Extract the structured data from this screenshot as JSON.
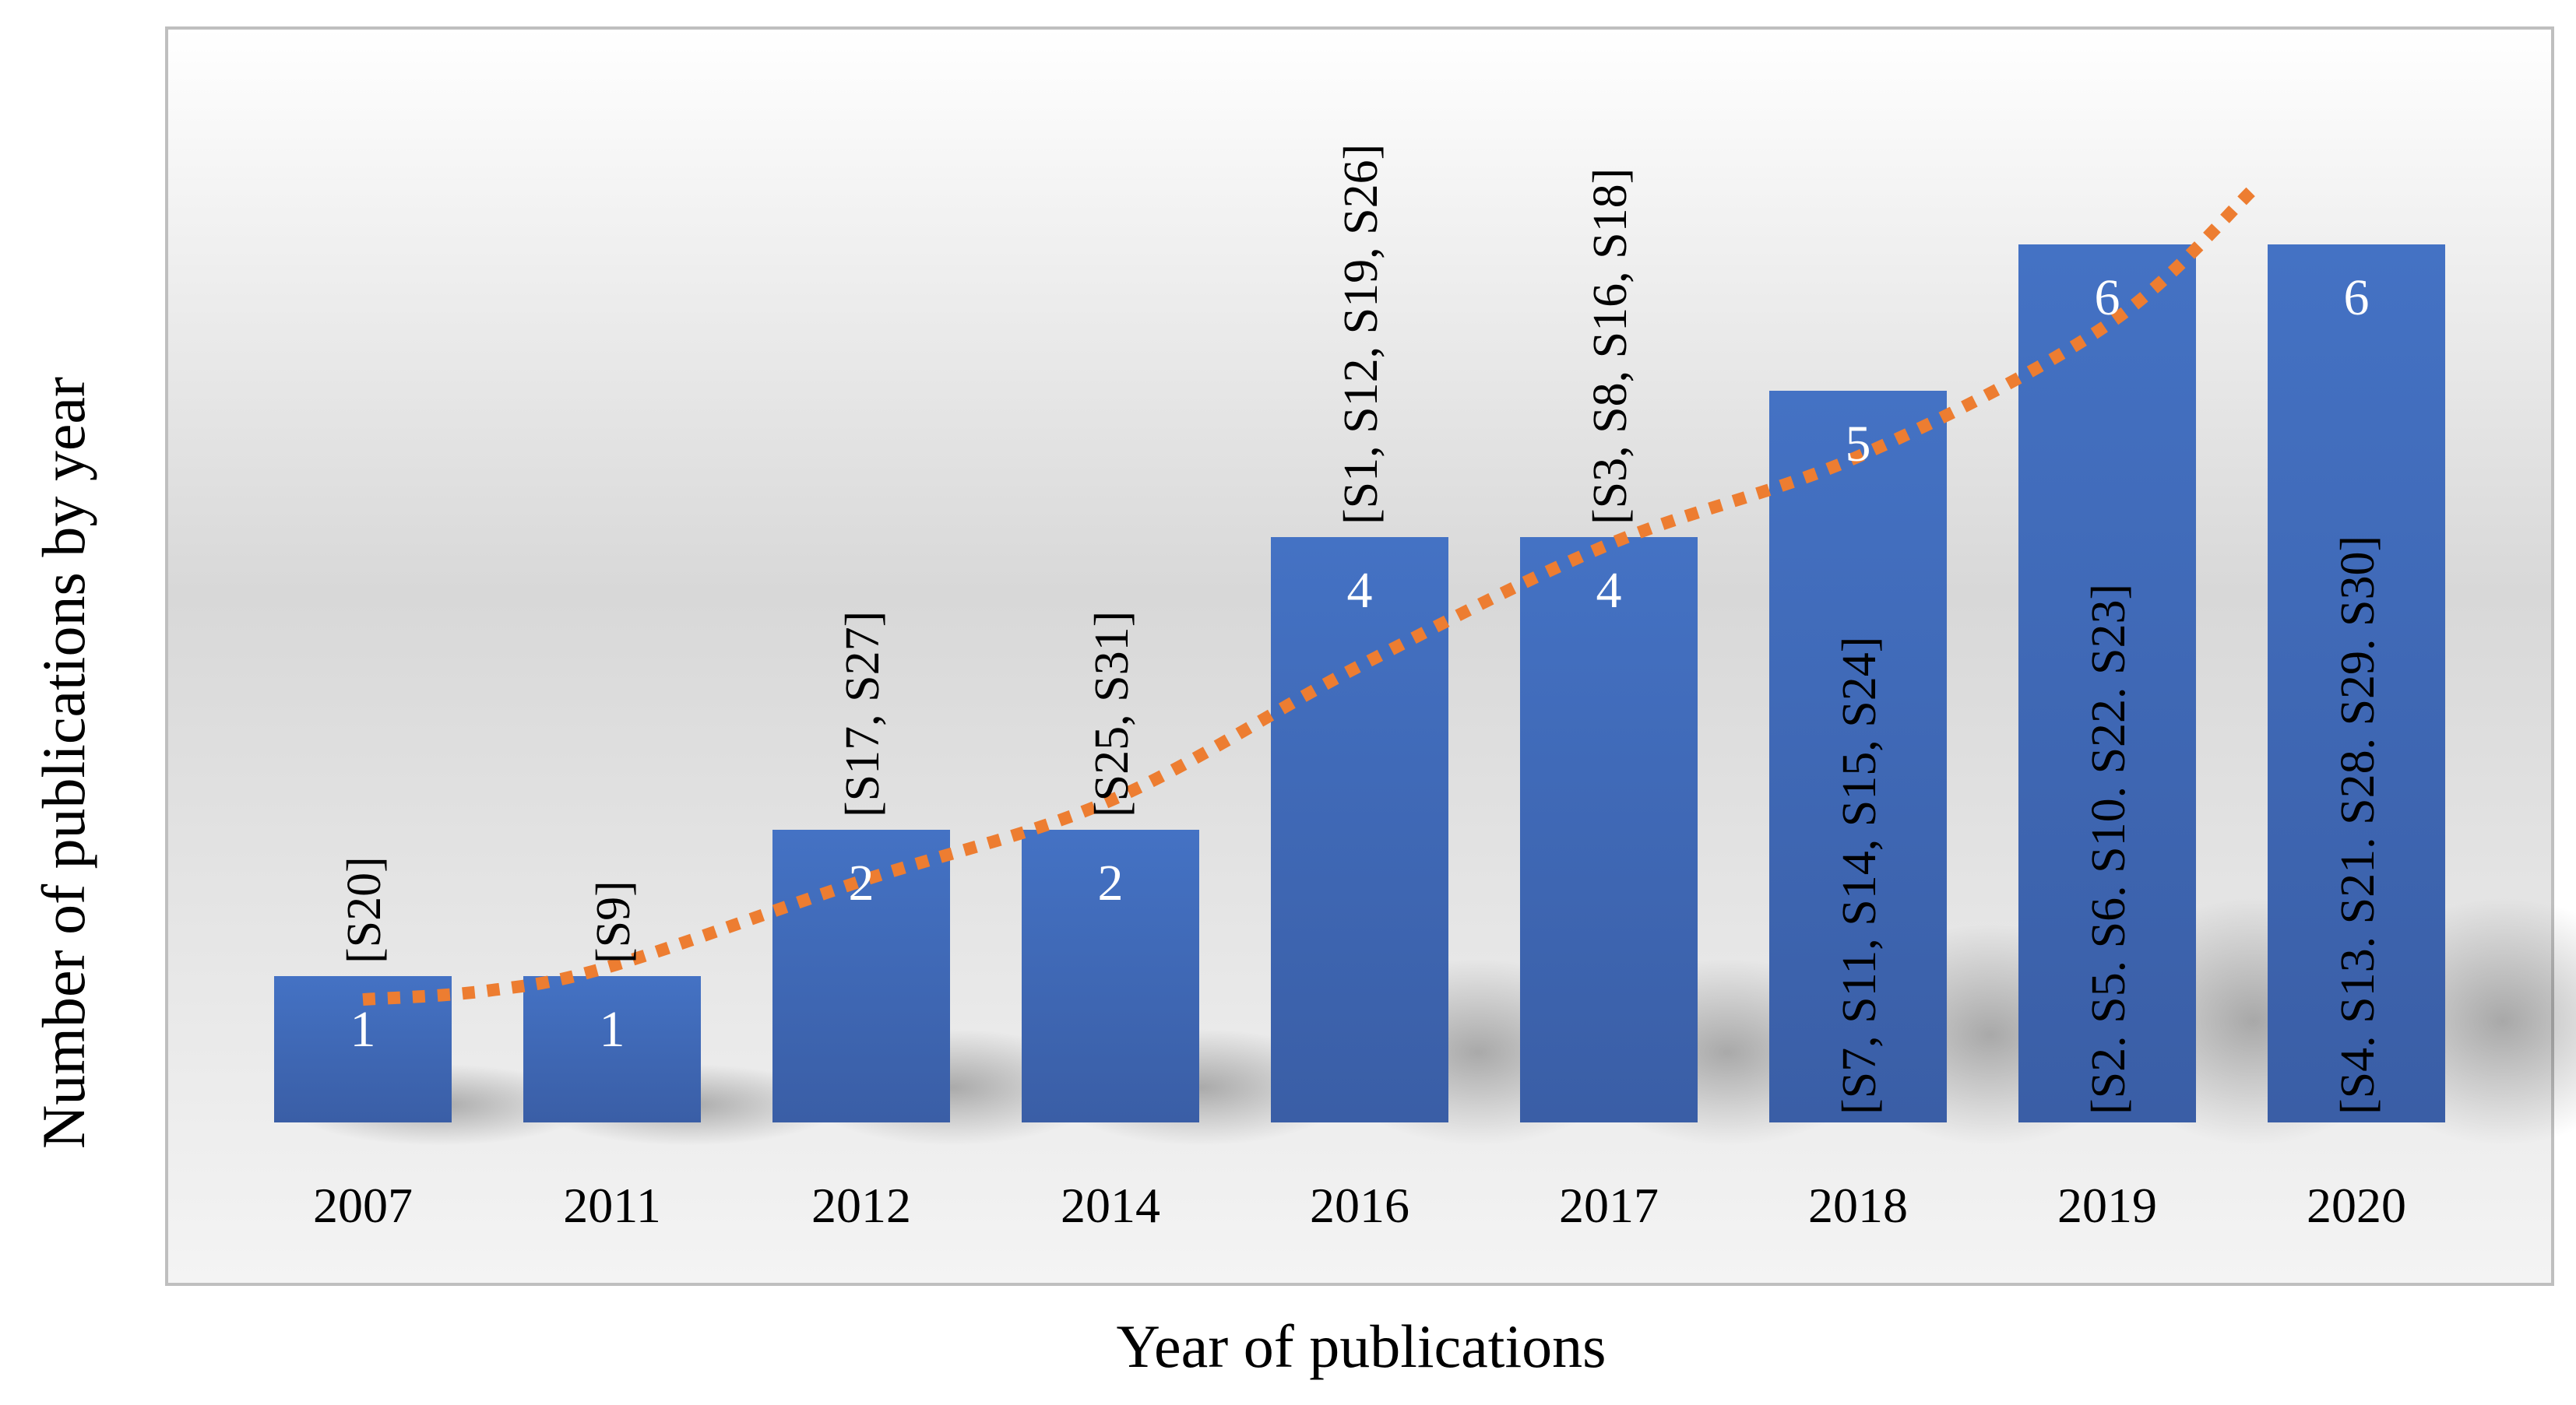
{
  "chart_data": {
    "type": "bar",
    "title": "",
    "xlabel": "Year of publications",
    "ylabel": "Number of publications by year",
    "categories": [
      "2007",
      "2011",
      "2012",
      "2014",
      "2016",
      "2017",
      "2018",
      "2019",
      "2020"
    ],
    "values": [
      1,
      1,
      2,
      2,
      4,
      4,
      5,
      6,
      6
    ],
    "value_labels": [
      "1",
      "1",
      "2",
      "2",
      "4",
      "4",
      "5",
      "6",
      "6"
    ],
    "references": [
      "[S20]",
      "[S9]",
      "[S17, S27]",
      "[S25, S31]",
      "[S1, S12, S19, S26]",
      "[S3, S8, S16, S18]",
      "[S7, S11, S14, S15, S24]",
      "[S2. S5. S6. S10. S22. S23]",
      "[S4. S13. S21. S28. S29. S30]"
    ],
    "ylim": [
      0,
      7.5
    ],
    "grid": false,
    "legend": "none",
    "trendline": {
      "type": "polynomial",
      "style": "dotted",
      "points": [
        {
          "x": 0,
          "y": 0.84
        },
        {
          "x": 0.5,
          "y": 0.9
        },
        {
          "x": 1,
          "y": 1.07
        },
        {
          "x": 2,
          "y": 1.65
        },
        {
          "x": 3,
          "y": 2.2
        },
        {
          "x": 4,
          "y": 3.12
        },
        {
          "x": 5,
          "y": 3.95
        },
        {
          "x": 6,
          "y": 4.55
        },
        {
          "x": 7,
          "y": 5.45
        },
        {
          "x": 7.6,
          "y": 6.4
        }
      ]
    },
    "colors": {
      "bar_top": "#4472C4",
      "bar_bottom": "#3A5EA6",
      "trendline": "#ED7D31",
      "plot_border": "#BFBFBF"
    }
  }
}
